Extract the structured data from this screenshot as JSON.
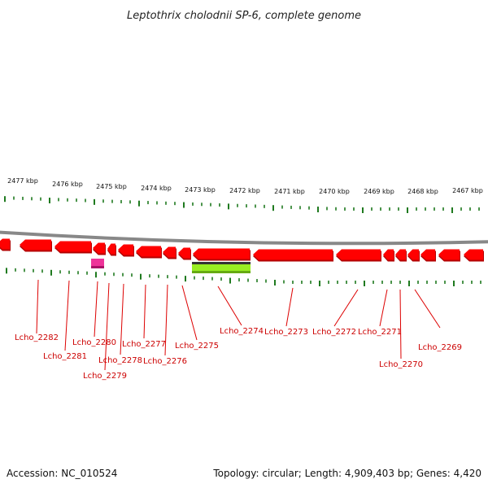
{
  "title": "Leptothrix cholodnii SP-6, complete genome",
  "footer": {
    "accession": "Accession: NC_010524",
    "summary": "Topology: circular; Length: 4,909,403 bp; Genes: 4,420"
  },
  "scale": {
    "labels": [
      "2477 kbp",
      "2476 kbp",
      "2475 kbp",
      "2474 kbp",
      "2473 kbp",
      "2472 kbp",
      "2471 kbp",
      "2470 kbp",
      "2469 kbp",
      "2468 kbp",
      "2467 kbp"
    ]
  },
  "genes": [
    {
      "label": "Lcho_2282"
    },
    {
      "label": "Lcho_2281"
    },
    {
      "label": "Lcho_2280"
    },
    {
      "label": "Lcho_2279"
    },
    {
      "label": "Lcho_2278"
    },
    {
      "label": "Lcho_2277"
    },
    {
      "label": "Lcho_2276"
    },
    {
      "label": "Lcho_2275"
    },
    {
      "label": "Lcho_2274"
    },
    {
      "label": "Lcho_2273"
    },
    {
      "label": "Lcho_2272"
    },
    {
      "label": "Lcho_2271"
    },
    {
      "label": "Lcho_2270"
    },
    {
      "label": "Lcho_2269"
    }
  ],
  "colors": {
    "gene_arrow": "#ff0000",
    "gene_arrow_shade": "#b30000",
    "tick_green": "#1f7a1f",
    "backbone": "#888888",
    "callout": "#dd0000",
    "pink_feature": "#ee3399",
    "green_feature": "#99ee22"
  }
}
